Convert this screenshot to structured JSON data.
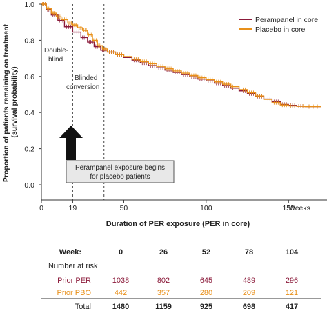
{
  "chart_data": {
    "type": "line",
    "title": "",
    "xlabel": "Duration of PER exposure (PER in core)",
    "ylabel": "Proportion of patients remaining on treatment (survival probability)",
    "xlim": [
      0,
      170
    ],
    "ylim": [
      0,
      1.0
    ],
    "x_ticks": [
      0,
      19,
      50,
      100,
      150
    ],
    "x_unit_label": "Weeks",
    "y_ticks": [
      0.0,
      0.2,
      0.4,
      0.6,
      0.8,
      1.0
    ],
    "y_tick_labels": [
      "0.0",
      "0.2",
      "0.4",
      "0.6",
      "0.8",
      "1.0"
    ],
    "legend_position": "top-right",
    "series": [
      {
        "name": "Perampanel in core",
        "color": "#8b1a3a",
        "points": [
          [
            0,
            1.0
          ],
          [
            3,
            0.97
          ],
          [
            6,
            0.94
          ],
          [
            10,
            0.91
          ],
          [
            14,
            0.875
          ],
          [
            19,
            0.845
          ],
          [
            24,
            0.815
          ],
          [
            28,
            0.79
          ],
          [
            32,
            0.765
          ],
          [
            36,
            0.745
          ],
          [
            40,
            0.735
          ],
          [
            45,
            0.72
          ],
          [
            50,
            0.705
          ],
          [
            55,
            0.69
          ],
          [
            60,
            0.675
          ],
          [
            65,
            0.66
          ],
          [
            70,
            0.648
          ],
          [
            75,
            0.635
          ],
          [
            80,
            0.622
          ],
          [
            85,
            0.61
          ],
          [
            90,
            0.598
          ],
          [
            95,
            0.585
          ],
          [
            100,
            0.575
          ],
          [
            105,
            0.563
          ],
          [
            110,
            0.55
          ],
          [
            115,
            0.535
          ],
          [
            120,
            0.52
          ],
          [
            125,
            0.505
          ],
          [
            130,
            0.49
          ],
          [
            135,
            0.475
          ],
          [
            140,
            0.46
          ],
          [
            145,
            0.445
          ],
          [
            150,
            0.44
          ],
          [
            155,
            0.435
          ],
          [
            160,
            0.433
          ],
          [
            170,
            0.433
          ]
        ]
      },
      {
        "name": "Placebo in core",
        "color": "#e8901a",
        "points": [
          [
            0,
            1.0
          ],
          [
            3,
            0.975
          ],
          [
            6,
            0.95
          ],
          [
            9,
            0.93
          ],
          [
            12,
            0.915
          ],
          [
            16,
            0.895
          ],
          [
            19,
            0.885
          ],
          [
            22,
            0.87
          ],
          [
            25,
            0.855
          ],
          [
            28,
            0.83
          ],
          [
            31,
            0.8
          ],
          [
            34,
            0.77
          ],
          [
            37,
            0.752
          ],
          [
            40,
            0.735
          ],
          [
            45,
            0.72
          ],
          [
            50,
            0.71
          ],
          [
            55,
            0.695
          ],
          [
            60,
            0.682
          ],
          [
            65,
            0.67
          ],
          [
            70,
            0.656
          ],
          [
            75,
            0.643
          ],
          [
            80,
            0.63
          ],
          [
            85,
            0.618
          ],
          [
            90,
            0.605
          ],
          [
            95,
            0.593
          ],
          [
            100,
            0.582
          ],
          [
            105,
            0.57
          ],
          [
            110,
            0.557
          ],
          [
            115,
            0.543
          ],
          [
            120,
            0.527
          ],
          [
            125,
            0.51
          ],
          [
            130,
            0.492
          ],
          [
            135,
            0.473
          ],
          [
            140,
            0.455
          ],
          [
            145,
            0.442
          ],
          [
            150,
            0.437
          ],
          [
            155,
            0.435
          ],
          [
            160,
            0.433
          ],
          [
            170,
            0.433
          ]
        ]
      }
    ],
    "phase_lines": [
      {
        "x": 19,
        "label": "Double-blind"
      },
      {
        "x": 38,
        "label": "Blinded conversion"
      }
    ],
    "annotation": {
      "text_line1": "Perampanel exposure begins",
      "text_line2": "for placebo patients",
      "arrow_x": 19
    },
    "risk_table": {
      "week_label": "Week:",
      "weeks": [
        "0",
        "26",
        "52",
        "78",
        "104"
      ],
      "section_label": "Number at risk",
      "rows": [
        {
          "label": "Prior PER",
          "color": "#8b1a3a",
          "values": [
            "1038",
            "802",
            "645",
            "489",
            "296"
          ]
        },
        {
          "label": "Prior PBO",
          "color": "#e8901a",
          "values": [
            "442",
            "357",
            "280",
            "209",
            "121"
          ]
        },
        {
          "label": "Total",
          "color": "#222222",
          "values": [
            "1480",
            "1159",
            "925",
            "698",
            "417"
          ]
        }
      ]
    }
  }
}
